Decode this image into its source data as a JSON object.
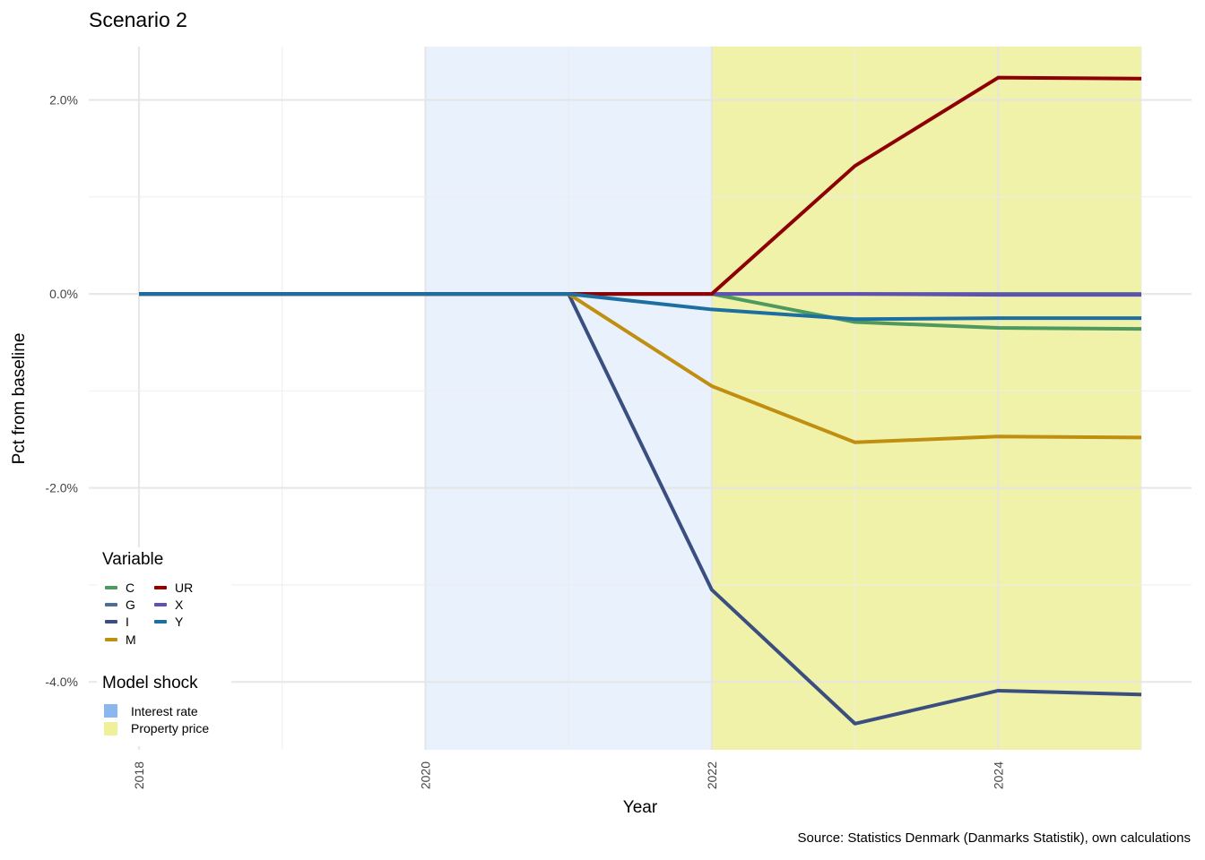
{
  "title": "Scenario 2",
  "caption": "Source: Statistics Denmark (Danmarks Statistik), own calculations",
  "chart_data": {
    "type": "line",
    "title": "Scenario 2",
    "xlabel": "Year",
    "ylabel": "Pct from baseline",
    "xlim": [
      2018,
      2025
    ],
    "ylim": [
      -4.7,
      2.55
    ],
    "x_ticks": [
      2018,
      2020,
      2022,
      2024
    ],
    "x_tick_labels": [
      "2018",
      "2020",
      "2022",
      "2024"
    ],
    "y_ticks": [
      -4,
      -2,
      0,
      2
    ],
    "y_tick_labels": [
      "-4.0%",
      "-2.0%",
      "0.0%",
      "2.0%"
    ],
    "grid": true,
    "x": [
      2018,
      2019,
      2020,
      2021,
      2022,
      2023,
      2024,
      2025
    ],
    "series": [
      {
        "name": "C",
        "color": "#4e9a5e",
        "values": [
          0,
          0,
          0,
          0,
          0,
          -0.29,
          -0.35,
          -0.36
        ]
      },
      {
        "name": "G",
        "color": "#4a6d99",
        "values": [
          0,
          0,
          0,
          0,
          0,
          0,
          0,
          0
        ]
      },
      {
        "name": "I",
        "color": "#3a4f7f",
        "values": [
          0,
          0,
          0,
          0,
          -3.05,
          -4.43,
          -4.09,
          -4.13
        ]
      },
      {
        "name": "M",
        "color": "#c08f10",
        "values": [
          0,
          0,
          0,
          0,
          -0.95,
          -1.53,
          -1.47,
          -1.48
        ]
      },
      {
        "name": "UR",
        "color": "#8e0000",
        "values": [
          0,
          0,
          0,
          0,
          0,
          1.32,
          2.23,
          2.22
        ]
      },
      {
        "name": "X",
        "color": "#6050b0",
        "values": [
          0,
          0,
          0,
          0,
          0,
          0,
          -0.01,
          -0.01
        ]
      },
      {
        "name": "Y",
        "color": "#1e6fa1",
        "values": [
          0,
          0,
          0,
          0,
          -0.16,
          -0.26,
          -0.25,
          -0.25
        ]
      }
    ],
    "shocks": [
      {
        "name": "Interest rate",
        "color": "#8ab8ee",
        "x_start": 2020,
        "x_end": 2022
      },
      {
        "name": "Property price",
        "color": "#eef09a",
        "x_start": 2022,
        "x_end": 2025
      }
    ],
    "legend": {
      "position": "bottom-left",
      "variable_title": "Variable",
      "shock_title": "Model shock"
    }
  }
}
